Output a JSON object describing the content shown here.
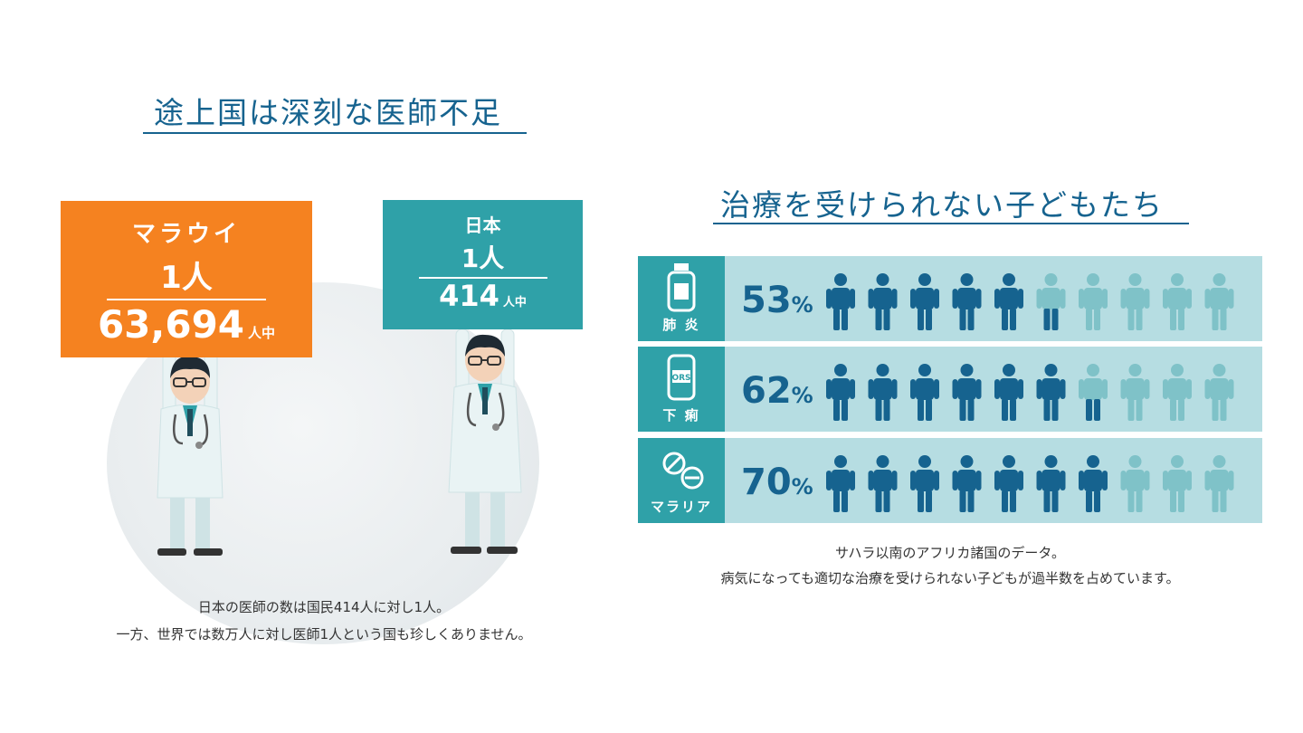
{
  "left": {
    "title": "途上国は深刻な医師不足",
    "malawi": {
      "country": "マラウイ",
      "doctors": "1人",
      "population": "63,694",
      "unit": "人中"
    },
    "japan": {
      "country": "日本",
      "doctors": "1人",
      "population": "414",
      "unit": "人中"
    },
    "caption_line1": "日本の医師の数は国民414人に対し1人。",
    "caption_line2": "一方、世界では数万人に対し医師1人という国も珍しくありません。"
  },
  "right": {
    "title": "治療を受けられない子どもたち",
    "rows": [
      {
        "label": "肺 炎",
        "percent": "53",
        "percent_sign": "%",
        "icon": "medicine-bottle-icon",
        "filled": 5.5
      },
      {
        "label": "下 痢",
        "percent": "62",
        "percent_sign": "%",
        "icon": "ors-pack-icon",
        "filled": 6.5
      },
      {
        "label": "マラリア",
        "percent": "70",
        "percent_sign": "%",
        "icon": "pills-icon",
        "filled": 7
      }
    ],
    "caption_line1": "サハラ以南のアフリカ諸国のデータ。",
    "caption_line2": "病気になっても適切な治療を受けられない子どもが過半数を占めています。"
  },
  "colors": {
    "orange": "#f58220",
    "teal": "#2fa1a8",
    "navy": "#16638f",
    "light_teal": "#b6dde2",
    "faded_person": "#7fc2c8"
  }
}
